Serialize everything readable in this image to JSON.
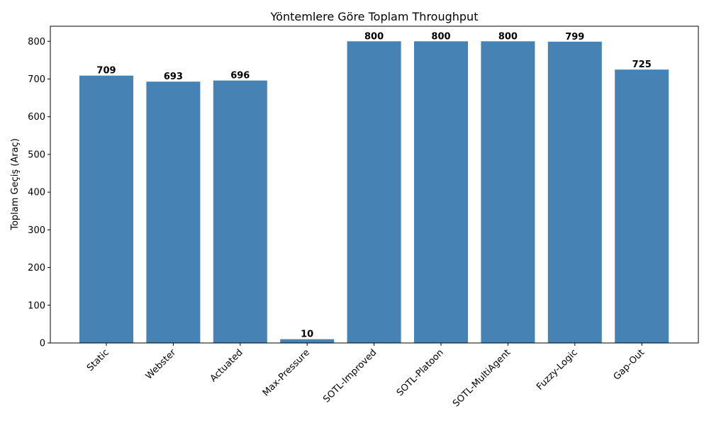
{
  "chart_data": {
    "type": "bar",
    "title": "Yöntemlere Göre Toplam Throughput",
    "xlabel": "",
    "ylabel": "Toplam Geçiş (Araç)",
    "categories": [
      "Static",
      "Webster",
      "Actuated",
      "Max-Pressure",
      "SOTL-Improved",
      "SOTL-Platoon",
      "SOTL-MultiAgent",
      "Fuzzy-Logic",
      "Gap-Out"
    ],
    "values": [
      709,
      693,
      696,
      10,
      800,
      800,
      800,
      799,
      725
    ],
    "data_labels": [
      "709",
      "693",
      "696",
      "10",
      "800",
      "800",
      "800",
      "799",
      "725"
    ],
    "ylim": [
      0,
      840
    ],
    "yticks": [
      0,
      100,
      200,
      300,
      400,
      500,
      600,
      700,
      800
    ],
    "xtick_rotation_deg": 45,
    "grid": false,
    "legend": "none",
    "bar_color": "#4682b4"
  }
}
